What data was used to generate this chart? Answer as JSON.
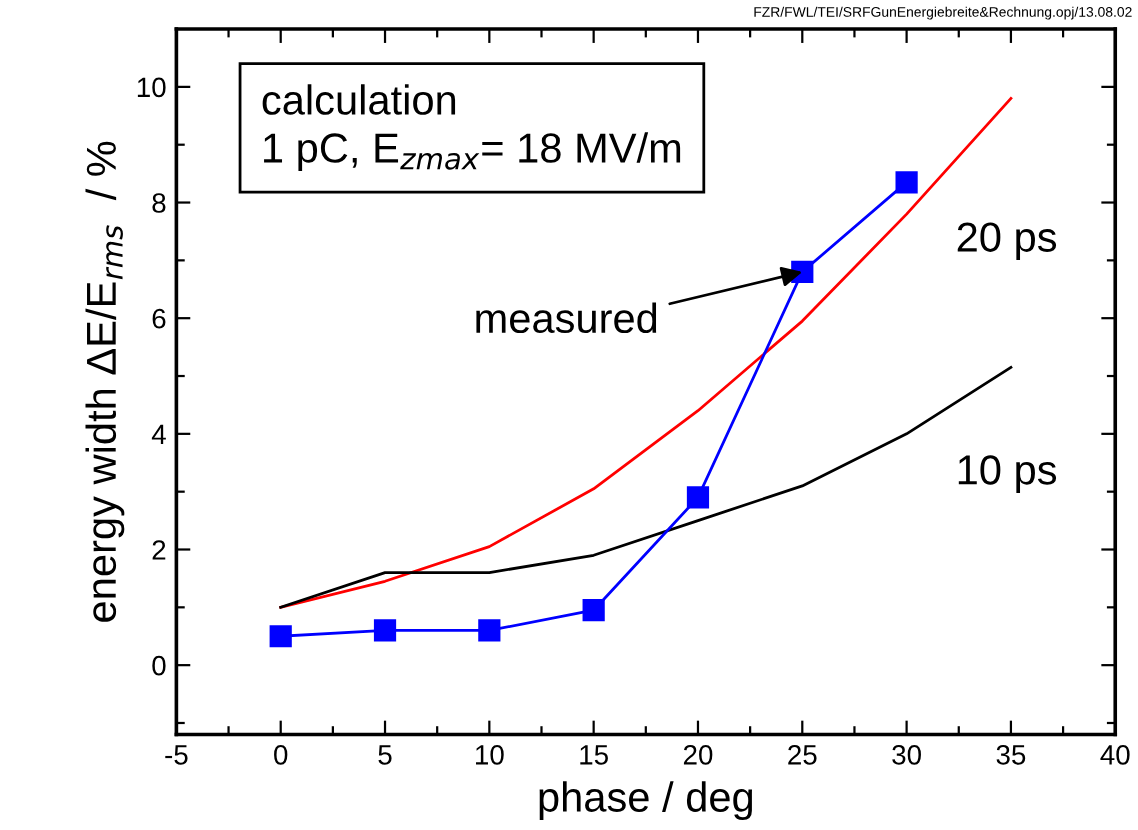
{
  "chart_data": {
    "type": "line",
    "xlabel": "phase / deg",
    "ylabel": "energy width ΔE/E$_{rms}$  / %",
    "x": [
      0,
      5,
      10,
      15,
      20,
      25,
      30,
      35
    ],
    "series": [
      {
        "color": "#ff0000",
        "values": [
          1.0,
          1.45,
          2.05,
          3.05,
          4.4,
          5.95,
          7.8,
          9.8
        ],
        "marker": "none"
      },
      {
        "color": "#000000",
        "values": [
          1.0,
          1.6,
          1.6,
          1.9,
          2.5,
          3.1,
          4.0,
          5.15
        ],
        "marker": "none"
      },
      {
        "color": "#0000ff",
        "x": [
          0,
          5,
          10,
          15,
          20,
          25,
          30
        ],
        "values": [
          0.5,
          0.6,
          0.6,
          0.95,
          2.9,
          6.8,
          8.35
        ],
        "marker": "square"
      }
    ],
    "xlim": [
      -5,
      40
    ],
    "ylim": [
      -1.2,
      11
    ],
    "xticks": [
      -5,
      {
        "value": -2.5,
        "label": null
      },
      0,
      {
        "value": 2.5,
        "label": null
      },
      5,
      {
        "value": 7.5,
        "label": null
      },
      10,
      {
        "value": 12.5,
        "label": null
      },
      15,
      {
        "value": 17.5,
        "label": null
      },
      20,
      {
        "value": 22.5,
        "label": null
      },
      25,
      {
        "value": 27.5,
        "label": null
      },
      30,
      {
        "value": 32.5,
        "label": null
      },
      35,
      {
        "value": 37.5,
        "label": null
      },
      40
    ],
    "yticks": [
      {
        "value": -1,
        "label": null
      },
      0,
      {
        "value": 1,
        "label": null
      },
      2,
      {
        "value": 3,
        "label": null
      },
      4,
      {
        "value": 5,
        "label": null
      },
      6,
      {
        "value": 7,
        "label": null
      },
      8,
      {
        "value": 9,
        "label": null
      },
      10
    ],
    "annotations": [
      "FZR/FWL/TEI/SRFGunEnergiebreite&Rechnung.opj/13.08.02",
      "calculation\n1 pC, E$_{zmax}$= 18 MV/m",
      {
        "text": "measured",
        "x": 25,
        "y": 6.8
      },
      "20 ps",
      "10 ps"
    ],
    "grid": false,
    "legend": false
  }
}
